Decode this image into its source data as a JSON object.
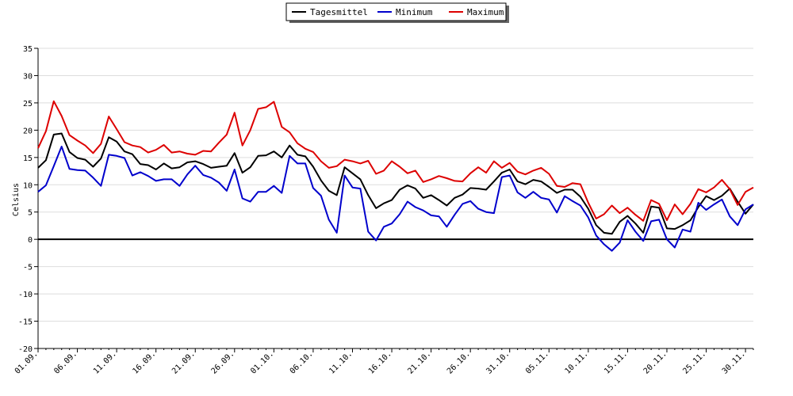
{
  "chart_data": {
    "type": "line",
    "ylabel": "Celsius",
    "ylim": [
      -20,
      35
    ],
    "yticks": [
      35,
      30,
      25,
      20,
      15,
      10,
      5,
      0,
      -5,
      -10,
      -15,
      -20
    ],
    "grid": true,
    "legend_position": "top-center",
    "x": [
      "01.09.",
      "02.09.",
      "03.09.",
      "04.09.",
      "05.09.",
      "06.09.",
      "07.09.",
      "08.09.",
      "09.09.",
      "10.09.",
      "11.09.",
      "12.09.",
      "13.09.",
      "14.09.",
      "15.09.",
      "16.09.",
      "17.09.",
      "18.09.",
      "19.09.",
      "20.09.",
      "21.09.",
      "22.09.",
      "23.09.",
      "24.09.",
      "25.09.",
      "26.09.",
      "27.09.",
      "28.09.",
      "29.09.",
      "30.09.",
      "01.10.",
      "02.10.",
      "03.10.",
      "04.10.",
      "05.10.",
      "06.10.",
      "07.10.",
      "08.10.",
      "09.10.",
      "10.10.",
      "11.10.",
      "12.10.",
      "13.10.",
      "14.10.",
      "15.10.",
      "16.10.",
      "17.10.",
      "18.10.",
      "19.10.",
      "20.10.",
      "21.10.",
      "22.10.",
      "23.10.",
      "24.10.",
      "25.10.",
      "26.10.",
      "27.10.",
      "28.10.",
      "29.10.",
      "30.10.",
      "31.10.",
      "01.11.",
      "02.11.",
      "03.11.",
      "04.11.",
      "05.11.",
      "06.11.",
      "07.11.",
      "08.11.",
      "09.11.",
      "10.11.",
      "11.11.",
      "12.11.",
      "13.11.",
      "14.11.",
      "15.11.",
      "16.11.",
      "17.11.",
      "18.11.",
      "19.11.",
      "20.11.",
      "21.11.",
      "22.11.",
      "23.11.",
      "24.11.",
      "25.11.",
      "26.11.",
      "27.11.",
      "28.11.",
      "29.11.",
      "30.11.",
      "01.12."
    ],
    "x_tick_labels": [
      "01.09.",
      "06.09.",
      "11.09.",
      "16.09.",
      "21.09.",
      "26.09.",
      "01.10.",
      "06.10.",
      "11.10.",
      "16.10.",
      "21.10.",
      "26.10.",
      "31.10.",
      "05.11.",
      "10.11.",
      "15.11.",
      "20.11.",
      "25.11.",
      "30.11."
    ],
    "series": [
      {
        "name": "Tagesmittel",
        "color": "#000000",
        "values": [
          13.1,
          14.5,
          19.2,
          19.4,
          16.0,
          14.9,
          14.6,
          13.3,
          14.8,
          18.7,
          17.9,
          16.1,
          15.6,
          13.8,
          13.6,
          12.8,
          13.9,
          13.0,
          13.2,
          14.1,
          14.3,
          13.8,
          13.1,
          13.3,
          13.5,
          15.8,
          12.2,
          13.2,
          15.3,
          15.4,
          16.1,
          15.0,
          17.2,
          15.5,
          15.2,
          13.3,
          10.8,
          8.9,
          8.1,
          13.2,
          12.1,
          11.0,
          8.1,
          5.7,
          6.6,
          7.2,
          9.1,
          9.9,
          9.3,
          7.6,
          8.1,
          7.2,
          6.2,
          7.6,
          8.2,
          9.4,
          9.3,
          9.1,
          10.6,
          12.2,
          12.8,
          10.6,
          10.1,
          10.9,
          10.6,
          9.6,
          8.5,
          9.1,
          9.1,
          7.8,
          5.6,
          2.6,
          1.2,
          1.0,
          3.2,
          4.3,
          2.9,
          1.2,
          6.0,
          5.8,
          2.0,
          1.9,
          2.6,
          3.5,
          5.9,
          7.9,
          7.2,
          8.0,
          9.3,
          6.9,
          4.7,
          6.4
        ]
      },
      {
        "name": "Minimum",
        "color": "#0000cc",
        "values": [
          8.7,
          9.9,
          13.4,
          17.0,
          12.9,
          12.7,
          12.6,
          11.3,
          9.8,
          15.5,
          15.3,
          14.9,
          11.7,
          12.3,
          11.6,
          10.7,
          11.0,
          11.0,
          9.8,
          11.9,
          13.5,
          11.8,
          11.3,
          10.4,
          8.9,
          12.8,
          7.5,
          6.9,
          8.7,
          8.7,
          9.8,
          8.5,
          15.3,
          13.9,
          13.9,
          9.4,
          8.0,
          3.6,
          1.2,
          11.7,
          9.5,
          9.3,
          1.4,
          -0.2,
          2.3,
          2.9,
          4.6,
          6.9,
          5.9,
          5.3,
          4.4,
          4.2,
          2.3,
          4.5,
          6.5,
          7.0,
          5.6,
          5.0,
          4.8,
          11.4,
          11.7,
          8.6,
          7.6,
          8.7,
          7.6,
          7.3,
          4.9,
          7.9,
          7.0,
          6.2,
          4.0,
          0.7,
          -0.9,
          -2.1,
          -0.6,
          3.5,
          1.4,
          -0.3,
          3.3,
          3.6,
          0.0,
          -1.5,
          1.8,
          1.4,
          6.7,
          5.4,
          6.4,
          7.3,
          4.2,
          2.6,
          5.5,
          6.4
        ]
      },
      {
        "name": "Maximum",
        "color": "#dd0000",
        "values": [
          16.7,
          19.8,
          25.3,
          22.6,
          19.1,
          18.1,
          17.2,
          15.8,
          17.5,
          22.5,
          20.2,
          17.8,
          17.2,
          16.9,
          15.9,
          16.4,
          17.3,
          15.9,
          16.1,
          15.7,
          15.5,
          16.2,
          16.1,
          17.7,
          19.2,
          23.2,
          17.2,
          20.0,
          23.9,
          24.2,
          25.2,
          20.6,
          19.6,
          17.6,
          16.6,
          16.0,
          14.3,
          13.1,
          13.4,
          14.6,
          14.3,
          13.9,
          14.4,
          12.0,
          12.6,
          14.3,
          13.3,
          12.1,
          12.6,
          10.5,
          11.0,
          11.6,
          11.2,
          10.7,
          10.6,
          12.1,
          13.2,
          12.2,
          14.3,
          13.1,
          14.0,
          12.4,
          11.9,
          12.6,
          13.1,
          12.0,
          9.8,
          9.6,
          10.3,
          10.1,
          6.7,
          3.8,
          4.6,
          6.2,
          4.8,
          5.8,
          4.5,
          3.4,
          7.2,
          6.5,
          3.5,
          6.4,
          4.6,
          6.5,
          9.2,
          8.6,
          9.5,
          10.9,
          9.2,
          6.3,
          8.7,
          9.5
        ]
      }
    ]
  }
}
